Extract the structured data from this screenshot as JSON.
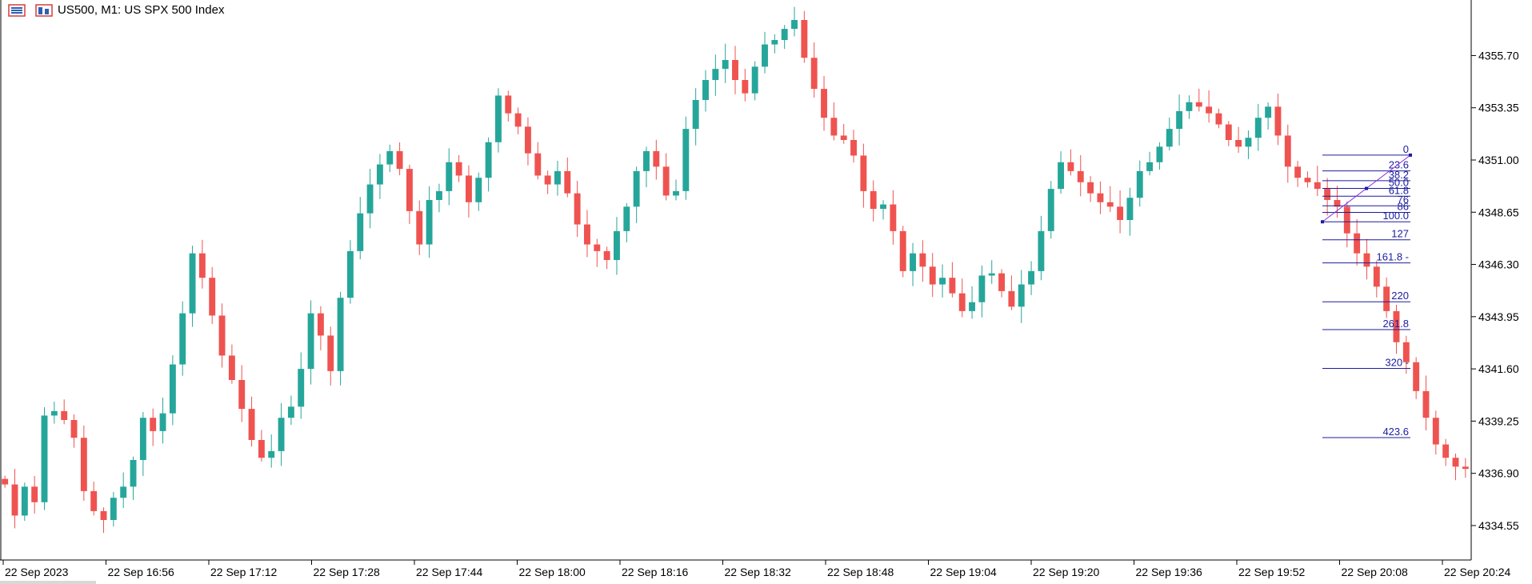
{
  "header": {
    "symbol_title": "US500, M1:  US SPX 500 Index"
  },
  "colors": {
    "bull": "#26a69a",
    "bear": "#ef5350",
    "fibo": "#1c1c9e",
    "axis": "#000000"
  },
  "chart_data": {
    "type": "candlestick",
    "title": "US500, M1:  US SPX 500 Index",
    "ylim": [
      4333.0,
      4358.2
    ],
    "y_ticks": [
      "4334.55",
      "4336.90",
      "4339.25",
      "4341.60",
      "4343.95",
      "4346.30",
      "4348.65",
      "4351.00",
      "4353.35",
      "4355.70"
    ],
    "y_tick_values": [
      4334.55,
      4336.9,
      4339.25,
      4341.6,
      4343.95,
      4346.3,
      4348.65,
      4351.0,
      4353.35,
      4355.7
    ],
    "x_ticks": [
      "22 Sep 2023",
      "22 Sep 16:56",
      "22 Sep 17:12",
      "22 Sep 17:28",
      "22 Sep 17:44",
      "22 Sep 18:00",
      "22 Sep 18:16",
      "22 Sep 18:32",
      "22 Sep 18:48",
      "22 Sep 19:04",
      "22 Sep 19:20",
      "22 Sep 19:36",
      "22 Sep 19:52",
      "22 Sep 20:08",
      "22 Sep 20:24"
    ],
    "close_series": [
      4336.4,
      4335.0,
      4336.3,
      4335.6,
      4339.5,
      4339.7,
      4339.3,
      4338.5,
      4336.1,
      4335.2,
      4334.8,
      4335.8,
      4336.3,
      4337.5,
      4339.4,
      4338.8,
      4339.6,
      4341.8,
      4344.1,
      4346.8,
      4345.7,
      4344.0,
      4342.2,
      4341.1,
      4339.8,
      4338.4,
      4337.6,
      4337.9,
      4339.4,
      4339.9,
      4341.6,
      4344.1,
      4343.1,
      4341.5,
      4344.8,
      4346.9,
      4348.6,
      4349.9,
      4350.8,
      4351.4,
      4350.6,
      4348.7,
      4347.2,
      4349.2,
      4349.6,
      4350.9,
      4350.3,
      4349.1,
      4350.2,
      4351.8,
      4353.9,
      4353.1,
      4352.5,
      4351.3,
      4350.3,
      4349.9,
      4350.5,
      4349.5,
      4348.1,
      4347.2,
      4346.9,
      4346.5,
      4347.8,
      4348.9,
      4350.5,
      4351.4,
      4350.7,
      4349.4,
      4349.6,
      4352.4,
      4353.7,
      4354.6,
      4355.1,
      4355.5,
      4354.6,
      4354.0,
      4355.2,
      4356.2,
      4356.4,
      4356.9,
      4357.3,
      4355.6,
      4354.2,
      4352.9,
      4352.1,
      4351.9,
      4351.2,
      4349.6,
      4348.8,
      4349.0,
      4347.8,
      4346.0,
      4346.8,
      4346.2,
      4345.4,
      4345.7,
      4345.0,
      4344.2,
      4344.6,
      4345.8,
      4345.9,
      4345.1,
      4344.4,
      4345.4,
      4346.0,
      4347.8,
      4349.7,
      4350.9,
      4350.5,
      4350.0,
      4349.5,
      4349.1,
      4348.9,
      4348.3,
      4349.3,
      4350.5,
      4350.9,
      4351.6,
      4352.4,
      4353.2,
      4353.6,
      4353.4,
      4353.1,
      4352.6,
      4351.9,
      4351.6,
      4352.0,
      4352.9,
      4353.4,
      4352.1,
      4350.7,
      4350.2,
      4350.0,
      4349.7,
      4349.2,
      4348.9,
      4347.7,
      4346.8,
      4346.2,
      4345.3,
      4344.2,
      4342.8,
      4341.9,
      4340.6,
      4339.4,
      4338.2,
      4337.6,
      4337.2,
      4337.1
    ],
    "fibonacci": {
      "levels": [
        "0",
        "23.6",
        "38.2",
        "50.0",
        "61.8",
        "76",
        "86",
        "100.0",
        "127",
        "161.8 -",
        "220",
        "261.8",
        "320 -",
        "423.6"
      ],
      "values": [
        4351.22,
        4350.51,
        4350.07,
        4349.72,
        4349.37,
        4348.94,
        4348.64,
        4348.22,
        4347.41,
        4346.37,
        4344.62,
        4343.37,
        4341.62,
        4338.51
      ]
    },
    "trend_line": {
      "from": 4348.22,
      "to": 4351.22
    },
    "grid": false
  }
}
